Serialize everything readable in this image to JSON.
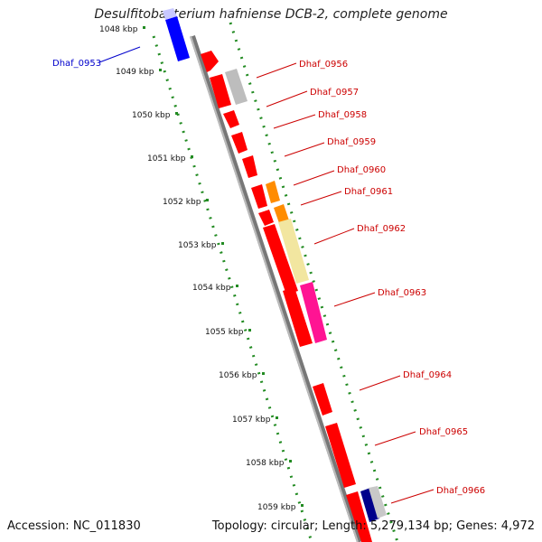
{
  "title": "Desulfitobacterium hafniense DCB-2, complete genome",
  "footer": {
    "accession": "Accession: NC_011830",
    "summary": "Topology: circular; Length: 5,279,134 bp; Genes: 4,972"
  },
  "colors": {
    "gene_red": "#ff0000",
    "gene_blue": "#0000ff",
    "label_red": "#cc0000",
    "label_blue": "#0000cc",
    "backbone": "#888888",
    "tick_green": "#228b22"
  },
  "kbp_ticks": [
    "1048 kbp",
    "1049 kbp",
    "1050 kbp",
    "1051 kbp",
    "1052 kbp",
    "1053 kbp",
    "1054 kbp",
    "1055 kbp",
    "1056 kbp",
    "1057 kbp",
    "1058 kbp",
    "1059 kbp"
  ],
  "gene_labels": [
    {
      "id": "Dhaf_0953",
      "color": "#0000cc"
    },
    {
      "id": "Dhaf_0956",
      "color": "#cc0000"
    },
    {
      "id": "Dhaf_0957",
      "color": "#cc0000"
    },
    {
      "id": "Dhaf_0958",
      "color": "#cc0000"
    },
    {
      "id": "Dhaf_0959",
      "color": "#cc0000"
    },
    {
      "id": "Dhaf_0960",
      "color": "#cc0000"
    },
    {
      "id": "Dhaf_0961",
      "color": "#cc0000"
    },
    {
      "id": "Dhaf_0962",
      "color": "#cc0000"
    },
    {
      "id": "Dhaf_0963",
      "color": "#cc0000"
    },
    {
      "id": "Dhaf_0964",
      "color": "#cc0000"
    },
    {
      "id": "Dhaf_0965",
      "color": "#cc0000"
    },
    {
      "id": "Dhaf_0966",
      "color": "#cc0000"
    }
  ]
}
